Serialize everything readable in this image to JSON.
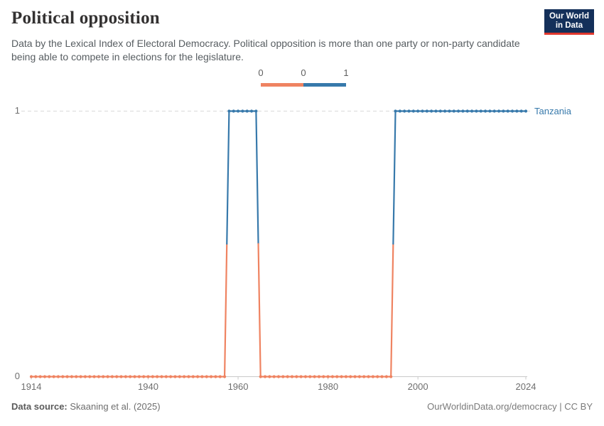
{
  "header": {
    "title": "Political opposition",
    "subtitle": "Data by the Lexical Index of Electoral Democracy. Political opposition is more than one party or non-party candidate being able to compete in elections for the legislature.",
    "logo": {
      "line1": "Our World",
      "line2": "in Data"
    }
  },
  "legend": {
    "labels": [
      "0",
      "0",
      "1"
    ],
    "colors": {
      "zero": "#EF8361",
      "one": "#3779AB"
    }
  },
  "chart_data": {
    "type": "line",
    "title": "Political opposition",
    "entity": "Tanzania",
    "x": {
      "range": [
        1914,
        2024
      ],
      "ticks": [
        1914,
        1940,
        1960,
        1980,
        2000,
        2024
      ]
    },
    "y": {
      "range": [
        0,
        1
      ],
      "ticks": [
        0,
        1
      ]
    },
    "grid": "dashed horizontal gridline at y=1, solid axis at y=0",
    "legend_position": "top-center",
    "value_colors": {
      "0": "#EF8361",
      "1": "#3779AB"
    },
    "series": [
      {
        "name": "Tanzania",
        "segments": [
          {
            "start_year": 1914,
            "end_year": 1957,
            "value": 0
          },
          {
            "start_year": 1958,
            "end_year": 1964,
            "value": 1
          },
          {
            "start_year": 1965,
            "end_year": 1994,
            "value": 0
          },
          {
            "start_year": 1995,
            "end_year": 2024,
            "value": 1
          }
        ]
      }
    ]
  },
  "footer": {
    "source_label": "Data source:",
    "source_value": " Skaaning et al. (2025)",
    "right": "OurWorldinData.org/democracy | CC BY"
  }
}
